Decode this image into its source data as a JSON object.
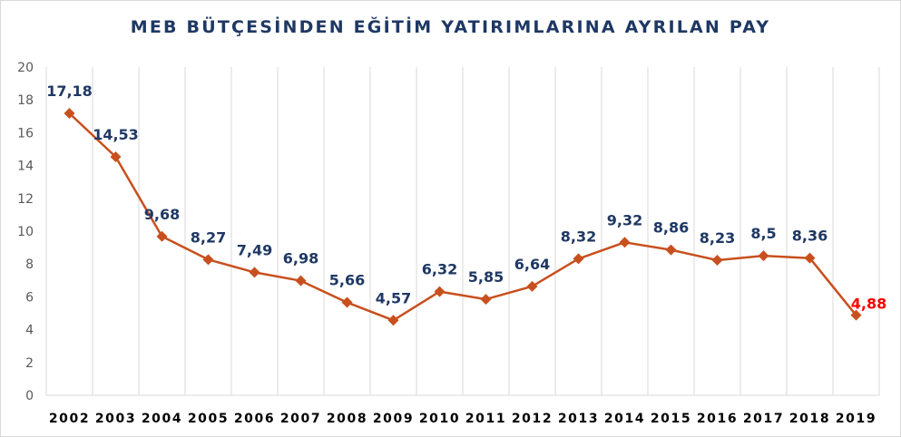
{
  "chart_data": {
    "type": "line",
    "title": "MEB BÜTÇESİNDEN EĞİTİM YATIRIMLARINA AYRILAN PAY",
    "categories": [
      "2002",
      "2003",
      "2004",
      "2005",
      "2006",
      "2007",
      "2008",
      "2009",
      "2010",
      "2011",
      "2012",
      "2013",
      "2014",
      "2015",
      "2016",
      "2017",
      "2018",
      "2019"
    ],
    "series": [
      {
        "values": [
          17.18,
          14.53,
          9.68,
          8.27,
          7.49,
          6.98,
          5.66,
          4.57,
          6.32,
          5.85,
          6.64,
          8.32,
          9.32,
          8.86,
          8.23,
          8.5,
          8.36,
          4.88
        ]
      }
    ],
    "data_labels": [
      "17,18",
      "14,53",
      "9,68",
      "8,27",
      "7,49",
      "6,98",
      "5,66",
      "4,57",
      "6,32",
      "5,85",
      "6,64",
      "8,32",
      "9,32",
      "8,86",
      "8,23",
      "8,5",
      "8,36",
      "4,88"
    ],
    "y_ticks": [
      "0",
      "2",
      "4",
      "6",
      "8",
      "10",
      "12",
      "14",
      "16",
      "18",
      "20"
    ],
    "ylim": [
      0,
      20
    ],
    "grid": "vertical",
    "marker": "diamond",
    "colors": {
      "line": "#c8501e",
      "label": "#1f3864",
      "highlight_label": "#ff0000",
      "grid": "#d9d9d9",
      "title": "#1f3864"
    }
  }
}
